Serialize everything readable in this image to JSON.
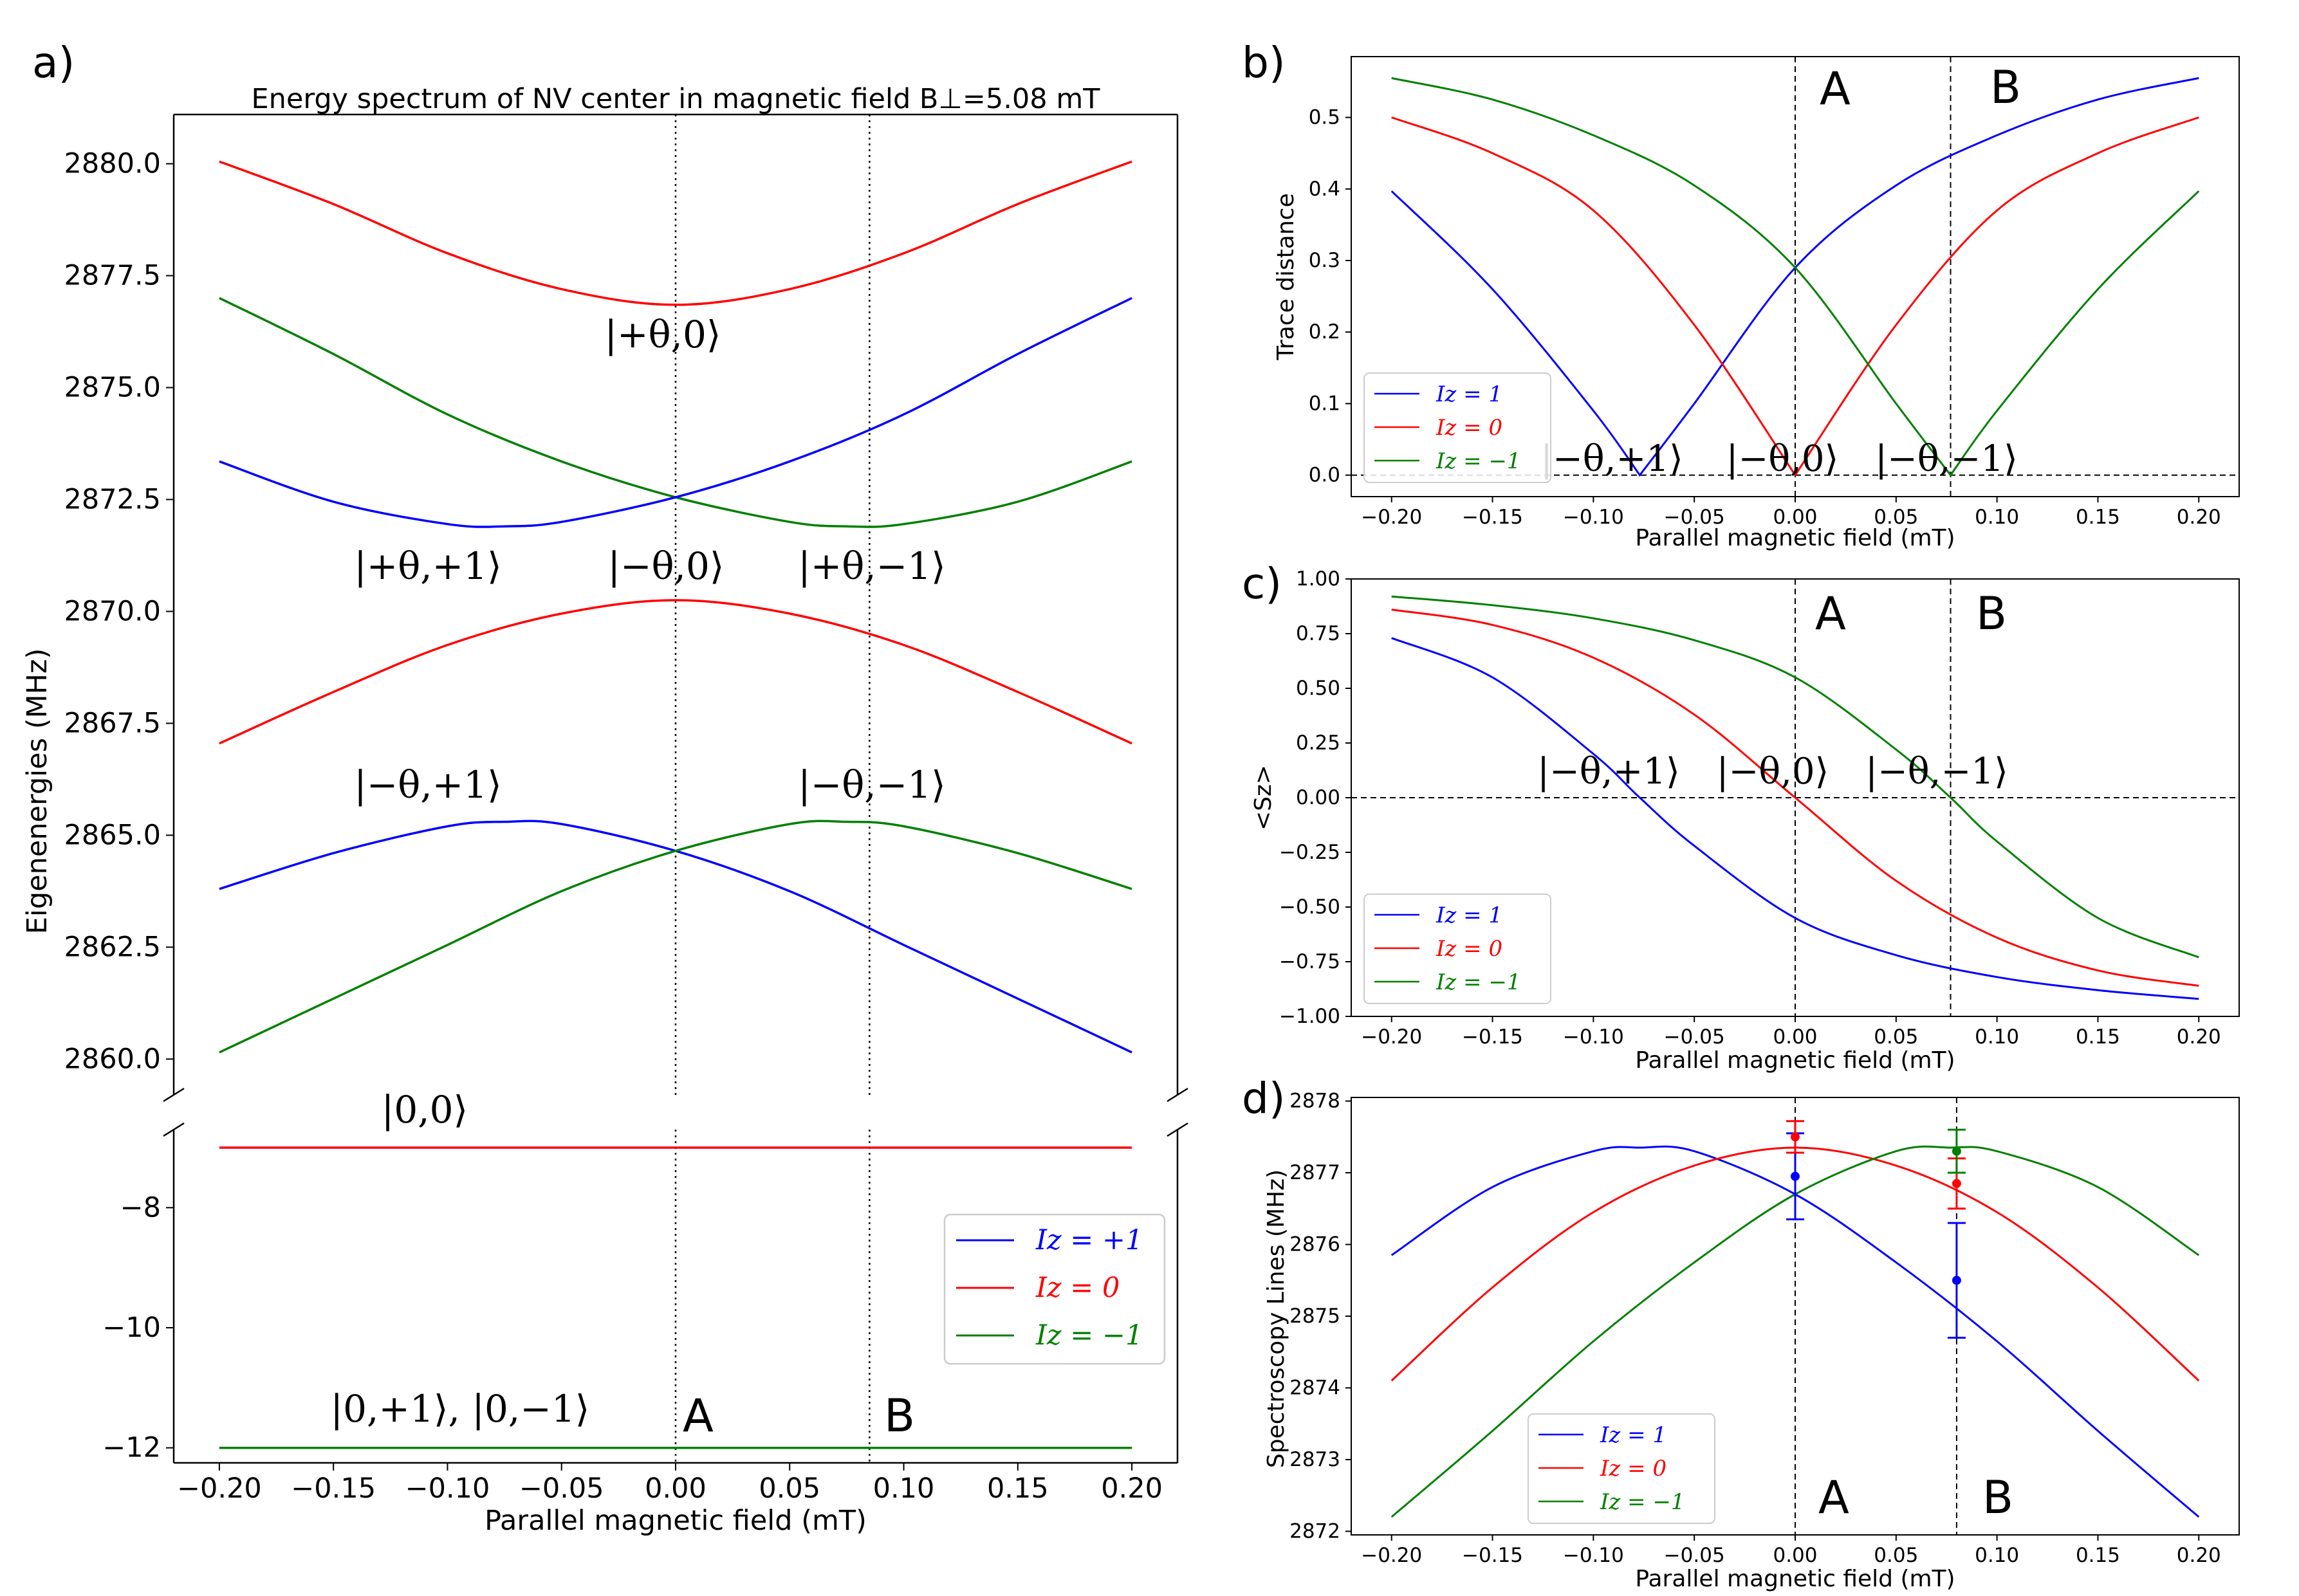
{
  "panel_labels": [
    "a)",
    "b)",
    "c)",
    "d)"
  ],
  "colors": {
    "Iz_plus1": "#0000ff",
    "Iz_0": "#ff0000",
    "Iz_minus1": "#008000",
    "axis": "#000000"
  },
  "marker_labels": {
    "A": "A",
    "B": "B"
  },
  "chart_data": [
    {
      "id": "a",
      "type": "line",
      "title": "Energy spectrum of NV center in magnetic field B⊥=5.08 mT",
      "xlabel": "Parallel magnetic field (mT)",
      "ylabel": "Eigenenergies (MHz)",
      "xlim": [
        -0.22,
        0.22
      ],
      "upper_ylim": [
        2859.2,
        2881.1
      ],
      "lower_ylim": [
        -12.25,
        -6.7
      ],
      "x_ticks": [
        "−0.20",
        "−0.15",
        "−0.10",
        "−0.05",
        "0.00",
        "0.05",
        "0.10",
        "0.15",
        "0.20"
      ],
      "upper_y_ticks": [
        "2860.0",
        "2862.5",
        "2865.0",
        "2867.5",
        "2870.0",
        "2872.5",
        "2875.0",
        "2877.5",
        "2880.0"
      ],
      "lower_y_ticks": [
        "−8",
        "−10",
        "−12"
      ],
      "vlines": {
        "A": 0.0,
        "B": 0.085
      },
      "upper_series": [
        {
          "name": "upper red",
          "color": "#ff0000",
          "x": [
            -0.2,
            -0.15,
            -0.1,
            -0.05,
            0.0,
            0.05,
            0.1,
            0.15,
            0.2
          ],
          "y": [
            2880.05,
            2879.1,
            2878.0,
            2877.2,
            2876.85,
            2877.2,
            2878.0,
            2879.1,
            2880.05
          ]
        },
        {
          "name": "upper green",
          "color": "#008000",
          "x": [
            -0.2,
            -0.15,
            -0.1,
            -0.05,
            0.0,
            0.05,
            0.075,
            0.1,
            0.15,
            0.2
          ],
          "y": [
            2877.0,
            2875.75,
            2874.4,
            2873.35,
            2872.55,
            2872.0,
            2871.9,
            2871.95,
            2872.45,
            2873.35
          ]
        },
        {
          "name": "upper blue",
          "color": "#0000ff",
          "x": [
            -0.2,
            -0.15,
            -0.1,
            -0.075,
            -0.05,
            0.0,
            0.05,
            0.1,
            0.15,
            0.2
          ],
          "y": [
            2873.35,
            2872.45,
            2871.95,
            2871.9,
            2872.0,
            2872.55,
            2873.35,
            2874.4,
            2875.75,
            2877.0
          ]
        },
        {
          "name": "middle red",
          "color": "#ff0000",
          "x": [
            -0.2,
            -0.15,
            -0.1,
            -0.05,
            0.0,
            0.05,
            0.1,
            0.15,
            0.2
          ],
          "y": [
            2867.05,
            2868.2,
            2869.25,
            2869.95,
            2870.25,
            2869.95,
            2869.25,
            2868.2,
            2867.05
          ]
        },
        {
          "name": "lower blue",
          "color": "#0000ff",
          "x": [
            -0.2,
            -0.15,
            -0.1,
            -0.075,
            -0.05,
            0.0,
            0.05,
            0.1,
            0.15,
            0.2
          ],
          "y": [
            2863.8,
            2864.6,
            2865.2,
            2865.3,
            2865.25,
            2864.65,
            2863.75,
            2862.55,
            2861.35,
            2860.15
          ]
        },
        {
          "name": "lower green",
          "color": "#008000",
          "x": [
            -0.2,
            -0.15,
            -0.1,
            -0.05,
            0.0,
            0.05,
            0.075,
            0.1,
            0.15,
            0.2
          ],
          "y": [
            2860.15,
            2861.35,
            2862.55,
            2863.75,
            2864.65,
            2865.25,
            2865.3,
            2865.2,
            2864.6,
            2863.8
          ]
        }
      ],
      "lower_series": [
        {
          "name": "|0,0⟩",
          "color": "#ff0000",
          "x": [
            -0.2,
            0.2
          ],
          "y": [
            -7.0,
            -7.0
          ]
        },
        {
          "name": "|0,±1⟩ blue",
          "color": "#0000ff",
          "x": [
            -0.2,
            0.2
          ],
          "y": [
            -12.0,
            -12.0
          ]
        },
        {
          "name": "|0,±1⟩ green",
          "color": "#008000",
          "x": [
            -0.2,
            0.2
          ],
          "y": [
            -12.0,
            -12.0
          ]
        }
      ],
      "annotations": [
        "|+θ,0⟩",
        "|+θ,+1⟩",
        "|−θ,0⟩",
        "|+θ,−1⟩",
        "|−θ,+1⟩",
        "|−θ,−1⟩",
        "|0,0⟩",
        "|0,+1⟩, |0,−1⟩"
      ],
      "legend": [
        "Iz = +1",
        "Iz = 0",
        "Iz = −1"
      ],
      "legend_placement": "lower-right"
    },
    {
      "id": "b",
      "type": "line",
      "xlabel": "Parallel magnetic field (mT)",
      "ylabel": "Trace distance",
      "xlim": [
        -0.22,
        0.22
      ],
      "ylim": [
        -0.03,
        0.585
      ],
      "x_ticks": [
        "−0.20",
        "−0.15",
        "−0.10",
        "−0.05",
        "0.00",
        "0.05",
        "0.10",
        "0.15",
        "0.20"
      ],
      "y_ticks": [
        "0.0",
        "0.1",
        "0.2",
        "0.3",
        "0.4",
        "0.5"
      ],
      "vlines": {
        "A": 0.0,
        "B": 0.077
      },
      "hline": 0.0,
      "series": [
        {
          "name": "Iz = 1",
          "color": "#0000ff",
          "x": [
            -0.2,
            -0.15,
            -0.1,
            -0.077,
            -0.05,
            0.0,
            0.05,
            0.1,
            0.15,
            0.2
          ],
          "y": [
            0.397,
            0.26,
            0.09,
            0.0,
            0.1,
            0.29,
            0.405,
            0.475,
            0.525,
            0.555
          ]
        },
        {
          "name": "Iz = 0",
          "color": "#ff0000",
          "x": [
            -0.2,
            -0.15,
            -0.1,
            -0.05,
            0.0,
            0.05,
            0.1,
            0.15,
            0.2
          ],
          "y": [
            0.5,
            0.45,
            0.37,
            0.21,
            0.0,
            0.21,
            0.37,
            0.45,
            0.5
          ]
        },
        {
          "name": "Iz = −1",
          "color": "#008000",
          "x": [
            -0.2,
            -0.15,
            -0.1,
            -0.05,
            0.0,
            0.05,
            0.077,
            0.1,
            0.15,
            0.2
          ],
          "y": [
            0.555,
            0.525,
            0.475,
            0.405,
            0.29,
            0.1,
            0.0,
            0.09,
            0.26,
            0.397
          ]
        }
      ],
      "annotations": [
        "|−θ,+1⟩",
        "|−θ,0⟩",
        "|−θ,−1⟩"
      ],
      "legend": [
        "Iz = 1",
        "Iz = 0",
        "Iz = −1"
      ],
      "legend_placement": "lower-left"
    },
    {
      "id": "c",
      "type": "line",
      "xlabel": "Parallel magnetic field (mT)",
      "ylabel": "<Sz>",
      "xlim": [
        -0.22,
        0.22
      ],
      "ylim": [
        -1.0,
        1.0
      ],
      "x_ticks": [
        "−0.20",
        "−0.15",
        "−0.10",
        "−0.05",
        "0.00",
        "0.05",
        "0.10",
        "0.15",
        "0.20"
      ],
      "y_ticks": [
        "1.00",
        "0.75",
        "0.50",
        "0.25",
        "0.00",
        "−0.25",
        "−0.50",
        "−0.75",
        "−1.00"
      ],
      "vlines": {
        "A": 0.0,
        "B": 0.077
      },
      "hline": 0.0,
      "series": [
        {
          "name": "Iz = 1",
          "color": "#0000ff",
          "x": [
            -0.2,
            -0.15,
            -0.1,
            -0.077,
            -0.05,
            0.0,
            0.05,
            0.1,
            0.15,
            0.2
          ],
          "y": [
            0.73,
            0.55,
            0.2,
            0.0,
            -0.22,
            -0.55,
            -0.72,
            -0.82,
            -0.88,
            -0.92
          ]
        },
        {
          "name": "Iz = 0",
          "color": "#ff0000",
          "x": [
            -0.2,
            -0.15,
            -0.1,
            -0.05,
            0.0,
            0.05,
            0.1,
            0.15,
            0.2
          ],
          "y": [
            0.86,
            0.79,
            0.64,
            0.38,
            0.0,
            -0.38,
            -0.64,
            -0.79,
            -0.86
          ]
        },
        {
          "name": "Iz = −1",
          "color": "#008000",
          "x": [
            -0.2,
            -0.15,
            -0.1,
            -0.05,
            0.0,
            0.05,
            0.077,
            0.1,
            0.15,
            0.2
          ],
          "y": [
            0.92,
            0.88,
            0.82,
            0.72,
            0.55,
            0.22,
            0.0,
            -0.2,
            -0.55,
            -0.73
          ]
        }
      ],
      "annotations": [
        "|−θ,+1⟩",
        "|−θ,0⟩",
        "|−θ,−1⟩"
      ],
      "legend": [
        "Iz = 1",
        "Iz = 0",
        "Iz = −1"
      ],
      "legend_placement": "lower-left"
    },
    {
      "id": "d",
      "type": "line",
      "xlabel": "Parallel magnetic field (mT)",
      "ylabel": "Spectroscopy Lines (MHz)",
      "xlim": [
        -0.22,
        0.22
      ],
      "ylim": [
        2871.95,
        2878.05
      ],
      "x_ticks": [
        "−0.20",
        "−0.15",
        "−0.10",
        "−0.05",
        "0.00",
        "0.05",
        "0.10",
        "0.15",
        "0.20"
      ],
      "y_ticks": [
        "2872",
        "2873",
        "2874",
        "2875",
        "2876",
        "2877",
        "2878"
      ],
      "vlines": {
        "A": 0.0,
        "B": 0.08
      },
      "series": [
        {
          "name": "Iz = 1",
          "color": "#0000ff",
          "x": [
            -0.2,
            -0.15,
            -0.1,
            -0.077,
            -0.05,
            0.0,
            0.05,
            0.1,
            0.15,
            0.2
          ],
          "y": [
            2875.85,
            2876.8,
            2877.3,
            2877.35,
            2877.3,
            2876.7,
            2875.75,
            2874.65,
            2873.4,
            2872.2
          ]
        },
        {
          "name": "Iz = 0",
          "color": "#ff0000",
          "x": [
            -0.2,
            -0.15,
            -0.1,
            -0.05,
            0.0,
            0.05,
            0.1,
            0.15,
            0.2
          ],
          "y": [
            2874.1,
            2875.4,
            2876.45,
            2877.1,
            2877.35,
            2877.1,
            2876.45,
            2875.4,
            2874.1
          ]
        },
        {
          "name": "Iz = −1",
          "color": "#008000",
          "x": [
            -0.2,
            -0.15,
            -0.1,
            -0.05,
            0.0,
            0.05,
            0.077,
            0.1,
            0.15,
            0.2
          ],
          "y": [
            2872.2,
            2873.4,
            2874.65,
            2875.75,
            2876.7,
            2877.3,
            2877.35,
            2877.3,
            2876.8,
            2875.85
          ]
        }
      ],
      "errorbars": [
        {
          "color": "#0000ff",
          "x": 0.0,
          "y": 2876.95,
          "err": 0.6
        },
        {
          "color": "#ff0000",
          "x": 0.0,
          "y": 2877.5,
          "err": 0.22
        },
        {
          "color": "#0000ff",
          "x": 0.08,
          "y": 2875.5,
          "err": 0.8
        },
        {
          "color": "#ff0000",
          "x": 0.08,
          "y": 2876.85,
          "err": 0.35
        },
        {
          "color": "#008000",
          "x": 0.08,
          "y": 2877.3,
          "err": 0.3
        }
      ],
      "legend": [
        "Iz = 1",
        "Iz = 0",
        "Iz = −1"
      ],
      "legend_placement": "lower-left"
    }
  ]
}
